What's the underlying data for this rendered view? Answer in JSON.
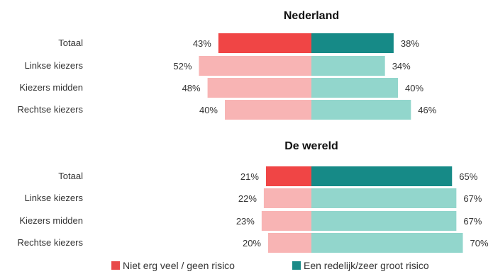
{
  "chart_data": [
    {
      "type": "bar",
      "orientation": "diverging-horizontal",
      "title": "Nederland",
      "categories": [
        "Totaal",
        "Linkse kiezers",
        "Kiezers midden",
        "Rechtse kiezers"
      ],
      "series": [
        {
          "name": "Niet erg veel / geen risico",
          "values": [
            43,
            52,
            48,
            40
          ],
          "labels": [
            "43%",
            "52%",
            "48%",
            "40%"
          ]
        },
        {
          "name": "Een redelijk/zeer groot risico",
          "values": [
            38,
            34,
            40,
            46
          ],
          "labels": [
            "38%",
            "34%",
            "40%",
            "46%"
          ]
        }
      ]
    },
    {
      "type": "bar",
      "orientation": "diverging-horizontal",
      "title": "De wereld",
      "categories": [
        "Totaal",
        "Linkse kiezers",
        "Kiezers midden",
        "Rechtse kiezers"
      ],
      "series": [
        {
          "name": "Niet erg veel / geen risico",
          "values": [
            21,
            22,
            23,
            20
          ],
          "labels": [
            "21%",
            "22%",
            "23%",
            "20%"
          ]
        },
        {
          "name": "Een redelijk/zeer groot risico",
          "values": [
            65,
            67,
            67,
            70
          ],
          "labels": [
            "65%",
            "67%",
            "67%",
            "70%"
          ]
        }
      ]
    }
  ],
  "legend": [
    {
      "label": "Niet erg veel / geen risico",
      "color": "#e84a4a"
    },
    {
      "label": "Een redelijk/zeer groot risico",
      "color": "#1a8a87"
    }
  ],
  "colors": {
    "left_strong": "#f04545",
    "left_light": "#f8b4b4",
    "right_strong": "#168a87",
    "right_light": "#92d6cc"
  }
}
